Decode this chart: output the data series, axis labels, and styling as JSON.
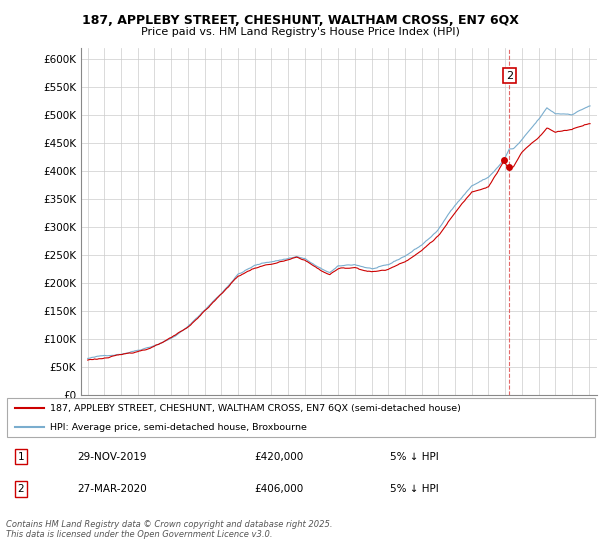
{
  "title_line1": "187, APPLEBY STREET, CHESHUNT, WALTHAM CROSS, EN7 6QX",
  "title_line2": "Price paid vs. HM Land Registry's House Price Index (HPI)",
  "legend_label_red": "187, APPLEBY STREET, CHESHUNT, WALTHAM CROSS, EN7 6QX (semi-detached house)",
  "legend_label_blue": "HPI: Average price, semi-detached house, Broxbourne",
  "annotation1_date": "29-NOV-2019",
  "annotation1_price": "£420,000",
  "annotation1_note": "5% ↓ HPI",
  "annotation2_date": "27-MAR-2020",
  "annotation2_price": "£406,000",
  "annotation2_note": "5% ↓ HPI",
  "footer": "Contains HM Land Registry data © Crown copyright and database right 2025.\nThis data is licensed under the Open Government Licence v3.0.",
  "ylim": [
    0,
    620000
  ],
  "yticks": [
    0,
    50000,
    100000,
    150000,
    200000,
    250000,
    300000,
    350000,
    400000,
    450000,
    500000,
    550000,
    600000
  ],
  "red_color": "#cc0000",
  "blue_color": "#7aadce",
  "dashed_line_color": "#dd4444",
  "grid_color": "#cccccc",
  "sale1_year": 2019.917,
  "sale1_value": 420000,
  "sale2_year": 2020.247,
  "sale2_value": 406000,
  "xmin": 1994.6,
  "xmax": 2025.5
}
